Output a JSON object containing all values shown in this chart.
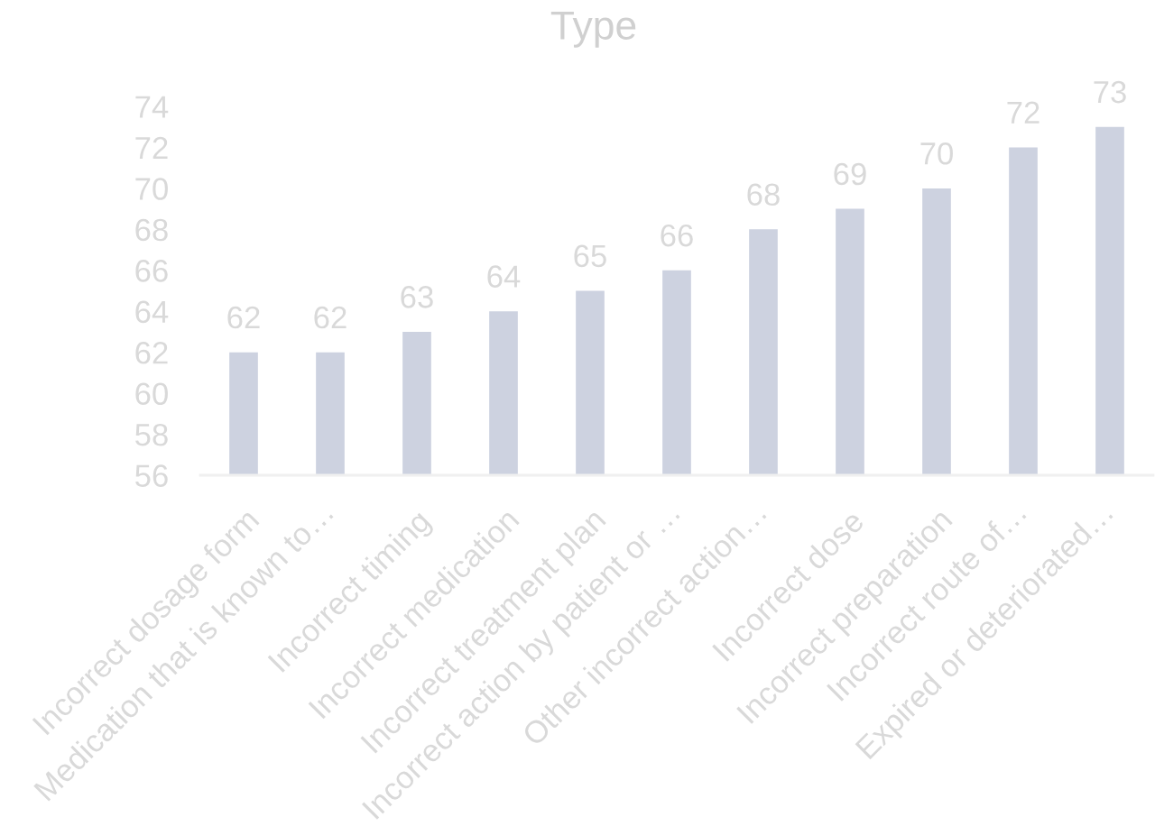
{
  "chart_data": {
    "type": "bar",
    "title": "Type",
    "categories": [
      "Incorrect dosage form",
      "Medication that is known to…",
      "Incorrect timing",
      "Incorrect medication",
      "Incorrect treatment plan",
      "Incorrect action by patient or …",
      "Other incorrect action…",
      "Incorrect dose",
      "Incorrect preparation",
      "Incorrect route of…",
      "Expired or deteriorated…"
    ],
    "values": [
      62,
      62,
      63,
      64,
      65,
      66,
      68,
      69,
      70,
      72,
      73
    ],
    "color": "#cdd2e0",
    "ylim": [
      56,
      74
    ],
    "yticks": [
      56,
      58,
      60,
      62,
      64,
      66,
      68,
      70,
      72,
      74
    ],
    "data_labels": true
  }
}
